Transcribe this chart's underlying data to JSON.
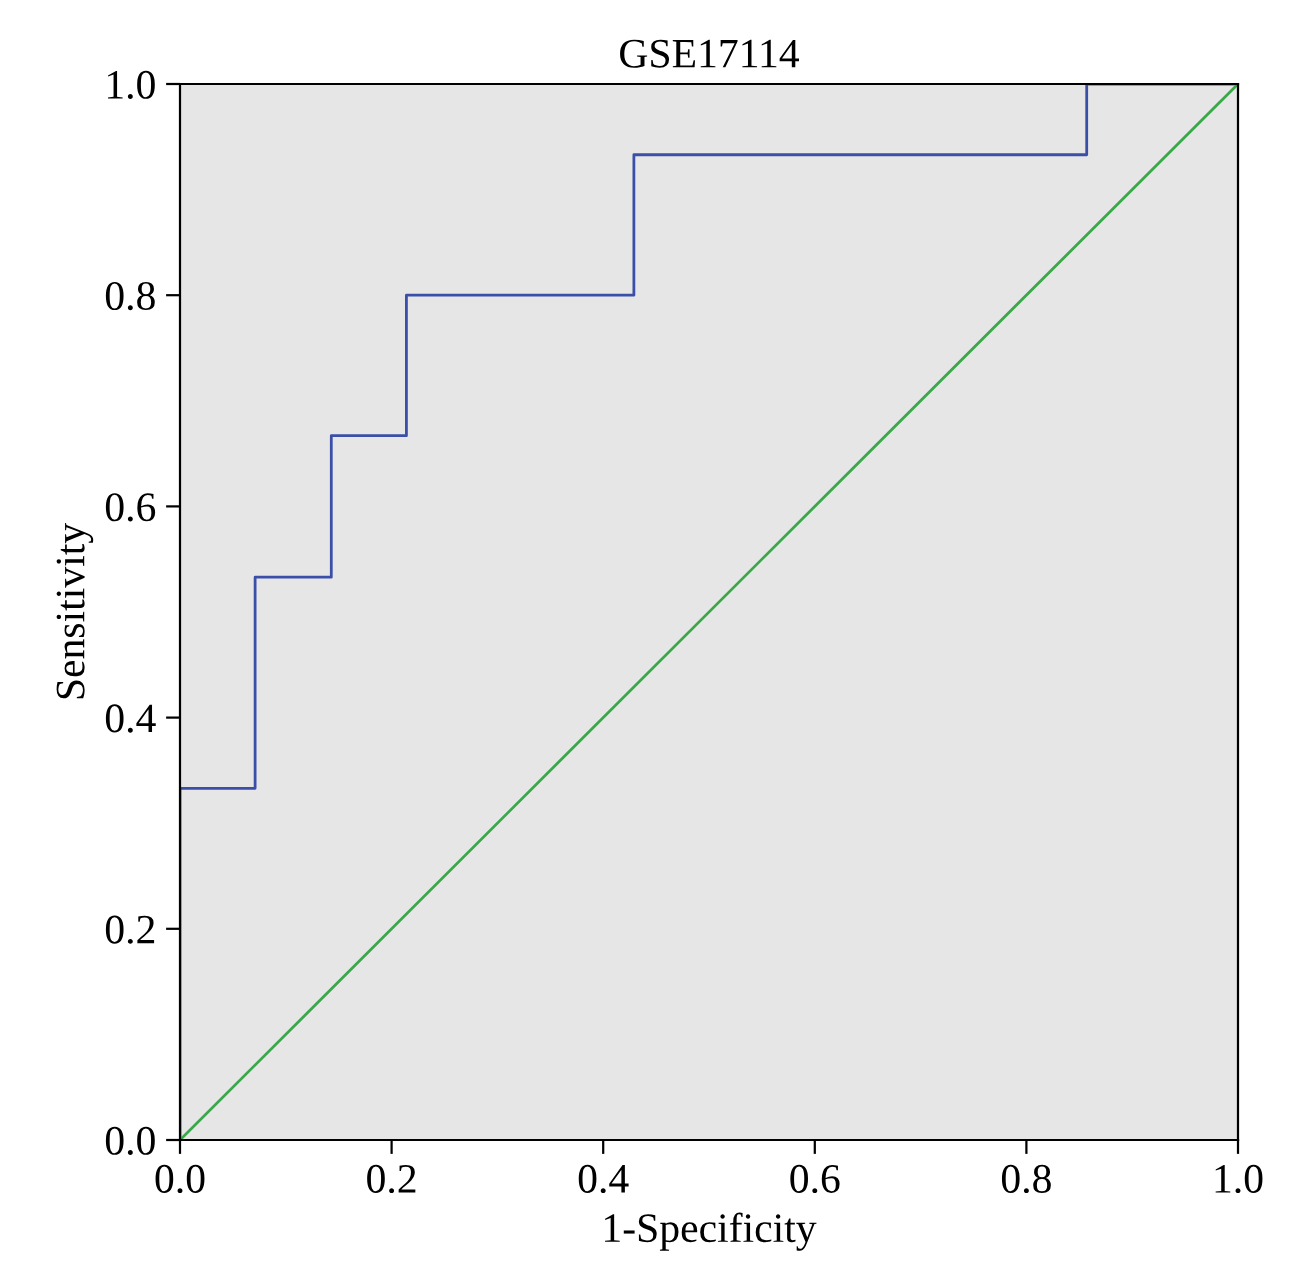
{
  "chart_data": {
    "type": "line",
    "title": "GSE17114",
    "xlabel": "1-Specificity",
    "ylabel": "Sensitivity",
    "series": [
      {
        "color": "#3b4fa8",
        "x": [
          0,
          0,
          0.071,
          0.071,
          0.143,
          0.143,
          0.214,
          0.214,
          0.429,
          0.429,
          0.857,
          0.857,
          1
        ],
        "values": [
          0,
          0.333,
          0.333,
          0.533,
          0.533,
          0.667,
          0.667,
          0.8,
          0.8,
          0.933,
          0.933,
          1,
          1
        ]
      },
      {
        "color": "#3aa84a",
        "x": [
          0,
          1
        ],
        "values": [
          0,
          1
        ]
      }
    ],
    "xlim": [
      0,
      1
    ],
    "ylim": [
      0,
      1
    ],
    "xticks": [
      {
        "value": 0,
        "label": "0.0"
      },
      {
        "value": 0.2,
        "label": "0.2"
      },
      {
        "value": 0.4,
        "label": "0.4"
      },
      {
        "value": 0.6,
        "label": "0.6"
      },
      {
        "value": 0.8,
        "label": "0.8"
      },
      {
        "value": 1,
        "label": "1.0"
      }
    ],
    "yticks": [
      {
        "value": 0,
        "label": "0.0"
      },
      {
        "value": 0.2,
        "label": "0.2"
      },
      {
        "value": 0.4,
        "label": "0.4"
      },
      {
        "value": 0.6,
        "label": "0.6"
      },
      {
        "value": 0.8,
        "label": "0.8"
      },
      {
        "value": 1,
        "label": "1.0"
      }
    ],
    "grid": false,
    "legend": false,
    "marker": "none",
    "line_style": "solid"
  }
}
